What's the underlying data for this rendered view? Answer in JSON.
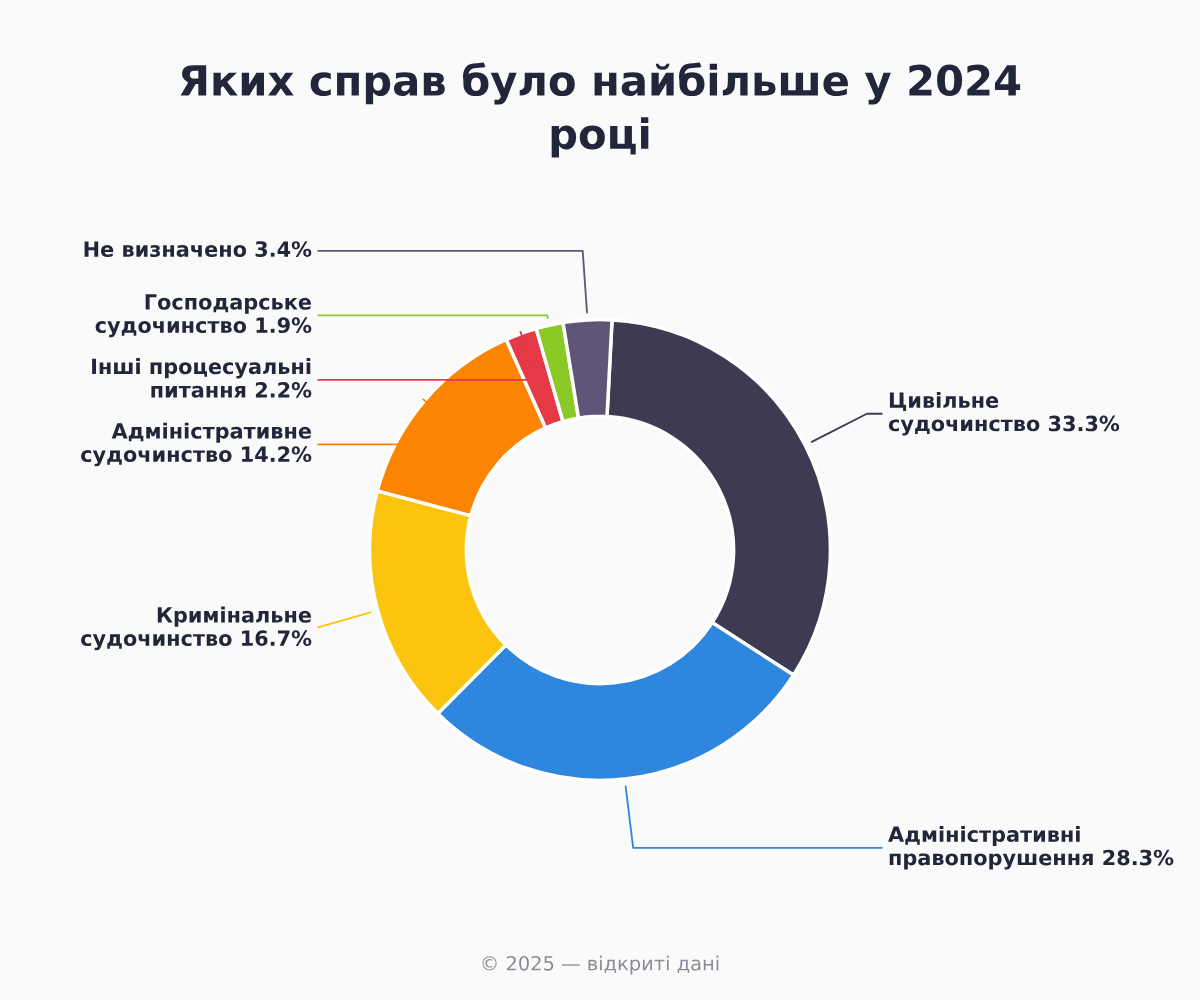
{
  "chart_data": {
    "type": "donut",
    "title": "Яких справ було найбільше у 2024\nроці",
    "categories": [
      "Цивільне\nсудочинство",
      "Адміністративні\nправопорушення",
      "Кримінальне\nсудочинство",
      "Адміністративне\nсудочинство",
      "Інші процесуальні\nпитання",
      "Господарське\nсудочинство",
      "Не визначено"
    ],
    "values": [
      33.3,
      28.3,
      16.7,
      14.2,
      2.2,
      1.9,
      3.4
    ],
    "value_labels": [
      "33.3%",
      "28.3%",
      "16.7%",
      "14.2%",
      "2.2%",
      "1.9%",
      "3.4%"
    ],
    "colors": [
      "#3d3b52",
      "#2e86de",
      "#fbc40f",
      "#fb8500",
      "#e63946",
      "#8ac926",
      "#5f5577"
    ],
    "annotations": [
      "© 2025 — відкриті дані"
    ],
    "legend": false
  }
}
